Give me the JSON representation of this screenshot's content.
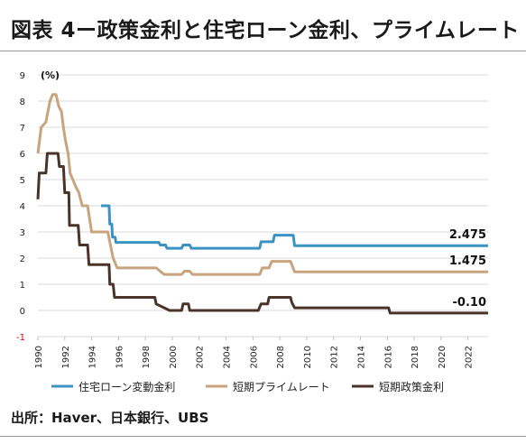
{
  "page": {
    "title": "図表 4ー政策金利と住宅ローン金利、プライムレート",
    "source": "出所：Haver、日本銀行、UBS"
  },
  "chart_data": {
    "type": "line",
    "title": "図表 4ー政策金利と住宅ローン金利、プライムレート",
    "ylabel": "(%)",
    "xlabel": "",
    "xlim": [
      1990,
      2023.5
    ],
    "ylim": [
      -1,
      9
    ],
    "y_ticks": [
      -1,
      0,
      1,
      2,
      3,
      4,
      5,
      6,
      7,
      8,
      9
    ],
    "x_ticks": [
      1990,
      1992,
      1994,
      1996,
      1998,
      2000,
      2002,
      2004,
      2006,
      2008,
      2010,
      2012,
      2014,
      2016,
      2018,
      2020,
      2022
    ],
    "grid": true,
    "legend_position": "bottom",
    "negative_tick_color": "#e00000",
    "series": [
      {
        "name": "住宅ローン変動金利",
        "color": "#3b93c4",
        "end_label": "2.475",
        "points": [
          [
            1994.7,
            4.0
          ],
          [
            1995.3,
            4.0
          ],
          [
            1995.35,
            3.3
          ],
          [
            1995.5,
            3.3
          ],
          [
            1995.55,
            2.8
          ],
          [
            1995.75,
            2.8
          ],
          [
            1995.8,
            2.6
          ],
          [
            1999.0,
            2.6
          ],
          [
            1999.1,
            2.5
          ],
          [
            1999.5,
            2.5
          ],
          [
            1999.6,
            2.375
          ],
          [
            2000.7,
            2.375
          ],
          [
            2000.8,
            2.5
          ],
          [
            2001.3,
            2.5
          ],
          [
            2001.4,
            2.375
          ],
          [
            2006.5,
            2.375
          ],
          [
            2006.6,
            2.625
          ],
          [
            2007.5,
            2.625
          ],
          [
            2007.6,
            2.875
          ],
          [
            2009.0,
            2.875
          ],
          [
            2009.1,
            2.475
          ],
          [
            2023.5,
            2.475
          ]
        ]
      },
      {
        "name": "短期プライムレート",
        "color": "#c8a47e",
        "end_label": "1.475",
        "points": [
          [
            1990.0,
            6.0
          ],
          [
            1990.25,
            7.0
          ],
          [
            1990.6,
            7.2
          ],
          [
            1990.9,
            8.0
          ],
          [
            1991.1,
            8.25
          ],
          [
            1991.35,
            8.25
          ],
          [
            1991.55,
            7.8
          ],
          [
            1991.75,
            7.6
          ],
          [
            1991.9,
            7.0
          ],
          [
            1992.05,
            6.5
          ],
          [
            1992.25,
            6.0
          ],
          [
            1992.4,
            5.25
          ],
          [
            1992.6,
            5.0
          ],
          [
            1992.8,
            4.75
          ],
          [
            1993.05,
            4.5
          ],
          [
            1993.3,
            4.0
          ],
          [
            1993.7,
            4.0
          ],
          [
            1993.85,
            3.5
          ],
          [
            1994.0,
            3.0
          ],
          [
            1995.2,
            3.0
          ],
          [
            1995.4,
            2.5
          ],
          [
            1995.6,
            2.0
          ],
          [
            1995.9,
            1.625
          ],
          [
            1998.8,
            1.625
          ],
          [
            1999.1,
            1.5
          ],
          [
            1999.4,
            1.375
          ],
          [
            2000.7,
            1.375
          ],
          [
            2000.9,
            1.5
          ],
          [
            2001.3,
            1.5
          ],
          [
            2001.5,
            1.375
          ],
          [
            2006.5,
            1.375
          ],
          [
            2006.7,
            1.625
          ],
          [
            2007.2,
            1.625
          ],
          [
            2007.4,
            1.875
          ],
          [
            2008.8,
            1.875
          ],
          [
            2009.1,
            1.475
          ],
          [
            2023.5,
            1.475
          ]
        ]
      },
      {
        "name": "短期政策金利",
        "color": "#4a3328",
        "end_label": "-0.10",
        "points": [
          [
            1990.0,
            4.25
          ],
          [
            1990.1,
            5.25
          ],
          [
            1990.6,
            5.25
          ],
          [
            1990.7,
            6.0
          ],
          [
            1991.5,
            6.0
          ],
          [
            1991.6,
            5.5
          ],
          [
            1991.9,
            5.5
          ],
          [
            1992.0,
            4.5
          ],
          [
            1992.3,
            4.5
          ],
          [
            1992.35,
            3.25
          ],
          [
            1993.0,
            3.25
          ],
          [
            1993.1,
            2.5
          ],
          [
            1993.7,
            2.5
          ],
          [
            1993.8,
            1.75
          ],
          [
            1995.3,
            1.75
          ],
          [
            1995.35,
            1.0
          ],
          [
            1995.6,
            1.0
          ],
          [
            1995.7,
            0.5
          ],
          [
            1998.7,
            0.5
          ],
          [
            1998.8,
            0.25
          ],
          [
            1999.2,
            0.15
          ],
          [
            1999.8,
            0.0
          ],
          [
            2000.7,
            0.0
          ],
          [
            2000.8,
            0.25
          ],
          [
            2001.2,
            0.25
          ],
          [
            2001.3,
            0.0
          ],
          [
            2006.4,
            0.0
          ],
          [
            2006.6,
            0.25
          ],
          [
            2007.1,
            0.25
          ],
          [
            2007.2,
            0.5
          ],
          [
            2008.8,
            0.5
          ],
          [
            2008.9,
            0.3
          ],
          [
            2009.1,
            0.1
          ],
          [
            2016.1,
            0.1
          ],
          [
            2016.2,
            -0.1
          ],
          [
            2023.5,
            -0.1
          ]
        ]
      }
    ]
  }
}
